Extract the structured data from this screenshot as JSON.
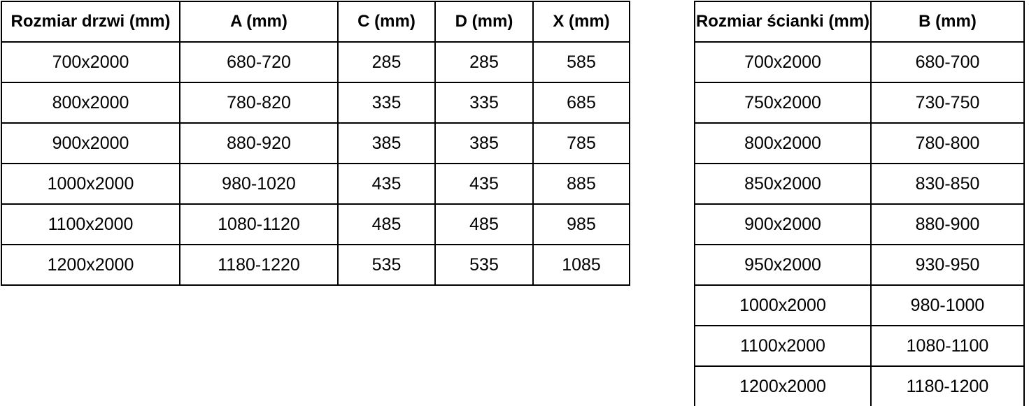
{
  "colors": {
    "background": "#ffffff",
    "border": "#000000",
    "text": "#000000"
  },
  "tables": {
    "doors": {
      "name": "door-sizes",
      "headers": [
        "Rozmiar drzwi (mm)",
        "A (mm)",
        "C (mm)",
        "D (mm)",
        "X (mm)"
      ],
      "rows": [
        [
          "700x2000",
          "680-720",
          "285",
          "285",
          "585"
        ],
        [
          "800x2000",
          "780-820",
          "335",
          "335",
          "685"
        ],
        [
          "900x2000",
          "880-920",
          "385",
          "385",
          "785"
        ],
        [
          "1000x2000",
          "980-1020",
          "435",
          "435",
          "885"
        ],
        [
          "1100x2000",
          "1080-1120",
          "485",
          "485",
          "985"
        ],
        [
          "1200x2000",
          "1180-1220",
          "535",
          "535",
          "1085"
        ]
      ]
    },
    "walls": {
      "name": "wall-sizes",
      "headers": [
        "Rozmiar ścianki (mm)",
        "B (mm)"
      ],
      "rows": [
        [
          "700x2000",
          "680-700"
        ],
        [
          "750x2000",
          "730-750"
        ],
        [
          "800x2000",
          "780-800"
        ],
        [
          "850x2000",
          "830-850"
        ],
        [
          "900x2000",
          "880-900"
        ],
        [
          "950x2000",
          "930-950"
        ],
        [
          "1000x2000",
          "980-1000"
        ],
        [
          "1100x2000",
          "1080-1100"
        ],
        [
          "1200x2000",
          "1180-1200"
        ]
      ]
    }
  }
}
